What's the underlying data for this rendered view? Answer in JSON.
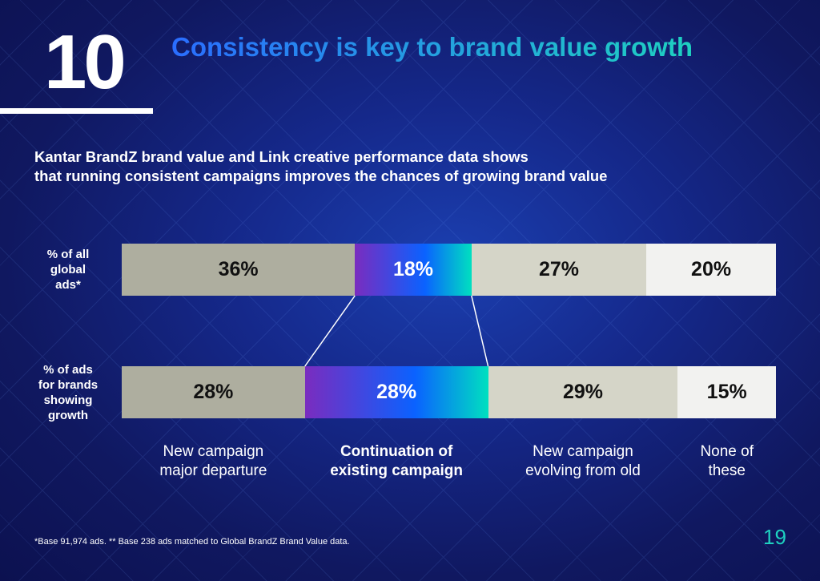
{
  "header": {
    "number": "10",
    "title": "Consistency is key to brand value growth"
  },
  "subtitle_lines": [
    "Kantar BrandZ brand value and Link creative performance data shows",
    "that running consistent campaigns improves the chances of growing brand value"
  ],
  "chart_data": {
    "type": "bar",
    "orientation": "horizontal-stacked",
    "categories": [
      "New campaign major departure",
      "Continuation of existing campaign",
      "New campaign evolving from old",
      "None of these"
    ],
    "category_lines": [
      [
        "New campaign",
        "major departure"
      ],
      [
        "Continuation of",
        "existing campaign"
      ],
      [
        "New campaign",
        "evolving from old"
      ],
      [
        "None of",
        "these"
      ]
    ],
    "series": [
      {
        "name": "% of all global ads*",
        "label_lines": [
          "% of all",
          "global",
          "ads*"
        ],
        "values": [
          36,
          18,
          27,
          20
        ],
        "labels": [
          "36%",
          "18%",
          "27%",
          "20%"
        ]
      },
      {
        "name": "% of ads for brands showing growth",
        "label_lines": [
          "% of ads",
          "for brands",
          "showing",
          "growth"
        ],
        "values": [
          28,
          28,
          29,
          15
        ],
        "labels": [
          "28%",
          "28%",
          "29%",
          "15%"
        ]
      }
    ],
    "highlight_category": 1,
    "colors": [
      "#aeae9f",
      "gradient",
      "#d5d5c8",
      "#f2f2f0"
    ],
    "gradient_colors": [
      "#7a2cbf",
      "#0a62ff",
      "#00e0c0"
    ]
  },
  "footnote": "*Base 91,974 ads. ** Base 238 ads matched to Global BrandZ Brand Value data.",
  "page_number": "19"
}
